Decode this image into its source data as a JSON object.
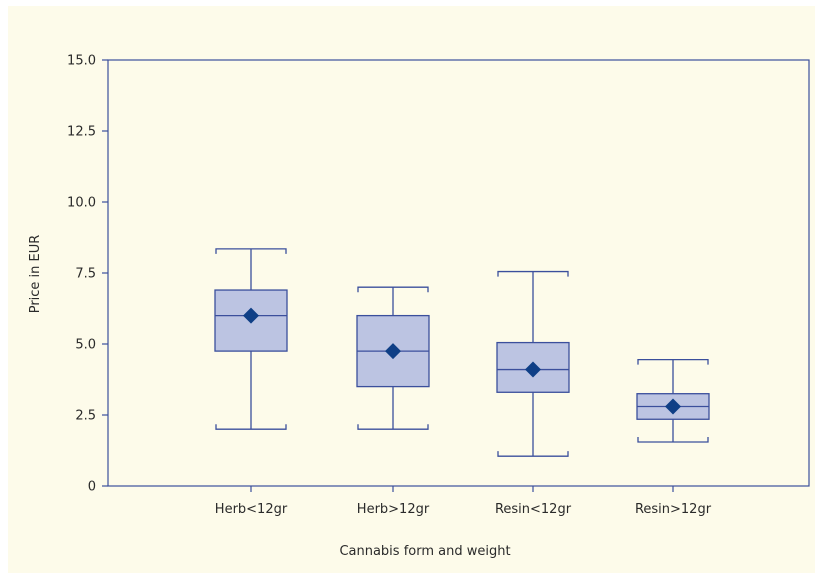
{
  "chart_data": {
    "type": "boxplot",
    "title": "",
    "xlabel": "Cannabis form and weight",
    "ylabel": "Price in EUR",
    "ylim": [
      0,
      15
    ],
    "yticks": [
      0,
      2.5,
      5.0,
      7.5,
      10.0,
      12.5,
      15.0
    ],
    "ytick_labels": [
      "0",
      "2.5",
      "5.0",
      "7.5",
      "10.0",
      "12.5",
      "15.0"
    ],
    "grid": false,
    "categories": [
      "Herb<12gr",
      "Herb>12gr",
      "Resin<12gr",
      "Resin>12gr"
    ],
    "boxes": [
      {
        "category": "Herb<12gr",
        "whisker_low": 2.0,
        "q1": 4.75,
        "median": 6.0,
        "q3": 6.9,
        "whisker_high": 8.35,
        "mean": 6.0
      },
      {
        "category": "Herb>12gr",
        "whisker_low": 2.0,
        "q1": 3.5,
        "median": 4.75,
        "q3": 6.0,
        "whisker_high": 7.0,
        "mean": 4.75
      },
      {
        "category": "Resin<12gr",
        "whisker_low": 1.05,
        "q1": 3.3,
        "median": 4.1,
        "q3": 5.05,
        "whisker_high": 7.55,
        "mean": 4.1
      },
      {
        "category": "Resin>12gr",
        "whisker_low": 1.55,
        "q1": 2.35,
        "median": 2.8,
        "q3": 3.25,
        "whisker_high": 4.45,
        "mean": 2.8
      }
    ],
    "colors": {
      "box_fill": "#bcc4e2",
      "box_stroke": "#3b4f9c",
      "mean_marker": "#0f3f86",
      "axis": "#3b4f9c",
      "background": "#fdfbea"
    }
  }
}
